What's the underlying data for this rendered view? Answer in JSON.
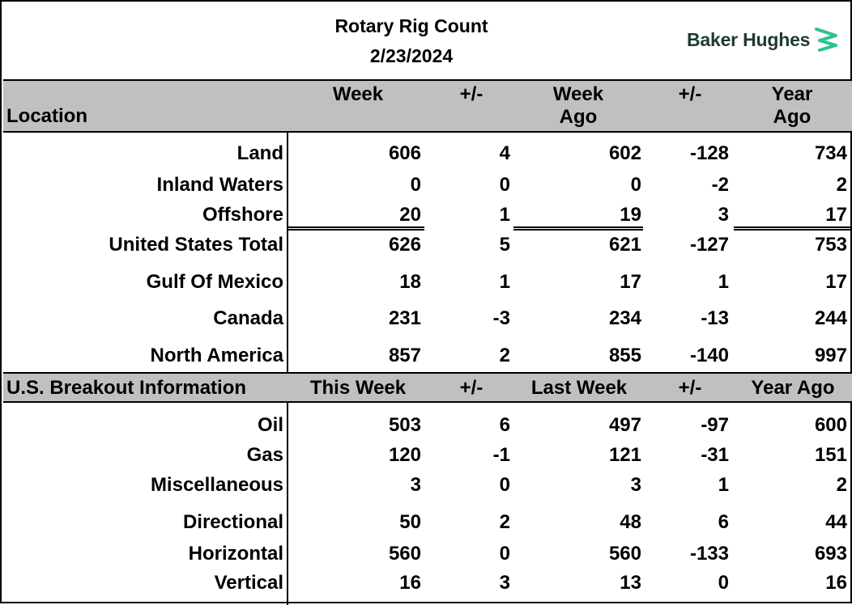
{
  "title": "Rotary Rig Count",
  "date": "2/23/2024",
  "logo_text": "Baker Hughes",
  "colors": {
    "header_bg": "#c0c0c0",
    "logo_text": "#1f3a33",
    "logo_mark": "#2ec28f"
  },
  "section1": {
    "headers": {
      "location": "Location",
      "week": "Week",
      "pm1": "+/-",
      "week_ago_1": "Week",
      "week_ago_2": "Ago",
      "pm2": "+/-",
      "year_ago_1": "Year",
      "year_ago_2": "Ago"
    },
    "rows": [
      {
        "label": "Land",
        "values": [
          "606",
          "4",
          "602",
          "-128",
          "734"
        ]
      },
      {
        "label": "Inland Waters",
        "values": [
          "0",
          "0",
          "0",
          "-2",
          "2"
        ]
      },
      {
        "label": "Offshore",
        "values": [
          "20",
          "1",
          "19",
          "3",
          "17"
        ]
      },
      {
        "label": "United States Total",
        "values": [
          "626",
          "5",
          "621",
          "-127",
          "753"
        ]
      },
      {
        "label": "Gulf Of Mexico",
        "values": [
          "18",
          "1",
          "17",
          "1",
          "17"
        ]
      },
      {
        "label": "Canada",
        "values": [
          "231",
          "-3",
          "234",
          "-13",
          "244"
        ]
      },
      {
        "label": "North America",
        "values": [
          "857",
          "2",
          "855",
          "-140",
          "997"
        ]
      }
    ]
  },
  "section2": {
    "headers": {
      "location": "U.S. Breakout Information",
      "this_week": "This Week",
      "pm1": "+/-",
      "last_week": "Last Week",
      "pm2": "+/-",
      "year_ago": "Year Ago"
    },
    "rows": [
      {
        "label": "Oil",
        "values": [
          "503",
          "6",
          "497",
          "-97",
          "600"
        ]
      },
      {
        "label": "Gas",
        "values": [
          "120",
          "-1",
          "121",
          "-31",
          "151"
        ]
      },
      {
        "label": "Miscellaneous",
        "values": [
          "3",
          "0",
          "3",
          "1",
          "2"
        ]
      },
      {
        "label": "Directional",
        "values": [
          "50",
          "2",
          "48",
          "6",
          "44"
        ]
      },
      {
        "label": "Horizontal",
        "values": [
          "560",
          "0",
          "560",
          "-133",
          "693"
        ]
      },
      {
        "label": "Vertical",
        "values": [
          "16",
          "3",
          "13",
          "0",
          "16"
        ]
      }
    ]
  }
}
